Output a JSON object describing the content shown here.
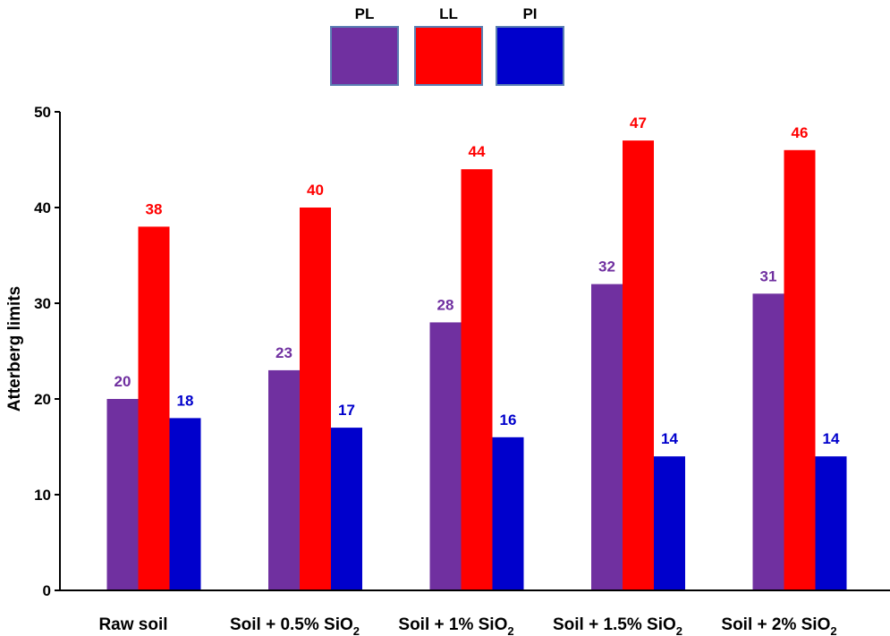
{
  "chart_data": {
    "type": "bar",
    "title": "",
    "xlabel": "",
    "ylabel": "Atterberg limits",
    "ylim": [
      0,
      50
    ],
    "yticks": [
      0,
      10,
      20,
      30,
      40,
      50
    ],
    "categories": [
      {
        "main": "Raw soil",
        "sub": ""
      },
      {
        "main": "Soil + 0.5% SiO",
        "sub": "2"
      },
      {
        "main": "Soil + 1% SiO",
        "sub": "2"
      },
      {
        "main": "Soil + 1.5% SiO",
        "sub": "2"
      },
      {
        "main": "Soil + 2% SiO",
        "sub": "2"
      }
    ],
    "series": [
      {
        "name": "PL",
        "color": "#7030a0",
        "values": [
          20,
          23,
          28,
          32,
          31
        ]
      },
      {
        "name": "LL",
        "color": "#ff0000",
        "values": [
          38,
          40,
          44,
          47,
          46
        ]
      },
      {
        "name": "PI",
        "color": "#0000cc",
        "values": [
          18,
          17,
          16,
          14,
          14
        ]
      }
    ],
    "legend_position": "top-center",
    "grid": false
  }
}
